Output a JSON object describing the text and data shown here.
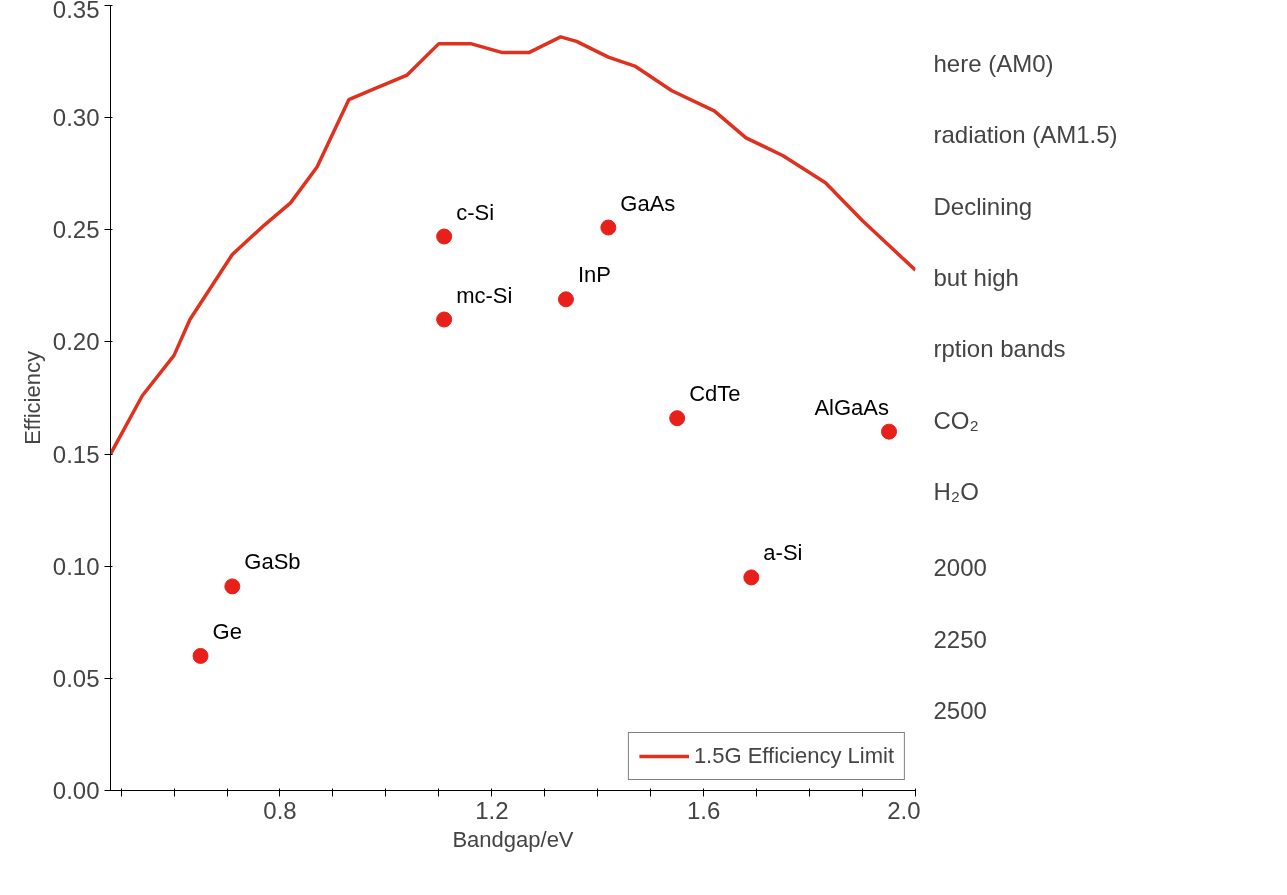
{
  "chart_data": [
    {
      "type": "scatter",
      "xlabel": "Bandgap/eV",
      "ylabel": "Efficiency",
      "xlim": [
        0.48,
        2.0
      ],
      "ylim": [
        0,
        0.35
      ],
      "xticks": [
        {
          "value": 0.5,
          "label": null
        },
        {
          "value": 0.6,
          "label": null
        },
        {
          "value": 0.7,
          "label": null
        },
        {
          "value": 0.8,
          "label": "0.8"
        },
        {
          "value": 0.9,
          "label": null
        },
        {
          "value": 1.0,
          "label": null
        },
        {
          "value": 1.1,
          "label": null
        },
        {
          "value": 1.2,
          "label": "1.2"
        },
        {
          "value": 1.3,
          "label": null
        },
        {
          "value": 1.4,
          "label": null
        },
        {
          "value": 1.5,
          "label": null
        },
        {
          "value": 1.6,
          "label": "1.6"
        },
        {
          "value": 1.7,
          "label": null
        },
        {
          "value": 1.8,
          "label": null
        },
        {
          "value": 1.9,
          "label": null
        },
        {
          "value": 2.0,
          "label": "2.0"
        }
      ],
      "yticks": [
        {
          "value": 0,
          "label": "0.00"
        },
        {
          "value": 0.05,
          "label": "0.05"
        },
        {
          "value": 0.1,
          "label": "0.10"
        },
        {
          "value": 0.15,
          "label": "0.15"
        },
        {
          "value": 0.2,
          "label": "0.20"
        },
        {
          "value": 0.25,
          "label": "0.25"
        },
        {
          "value": 0.3,
          "label": "0.30"
        },
        {
          "value": 0.35,
          "label": "0.35"
        }
      ],
      "grid": false,
      "legend": "bottom right",
      "series": [
        {
          "type": "line",
          "name": "1.5G Efficiency Limit",
          "color": "#e0301e",
          "marker": "none",
          "x": [
            0.48,
            0.54,
            0.6,
            0.63,
            0.71,
            0.77,
            0.82,
            0.87,
            0.93,
            0.98,
            1.04,
            1.1,
            1.16,
            1.22,
            1.27,
            1.33,
            1.36,
            1.42,
            1.47,
            1.54,
            1.62,
            1.68,
            1.75,
            1.83,
            1.9,
            2.0
          ],
          "values": [
            0.15,
            0.176,
            0.194,
            0.21,
            0.239,
            0.252,
            0.262,
            0.278,
            0.308,
            0.313,
            0.319,
            0.333,
            0.333,
            0.329,
            0.329,
            0.336,
            0.334,
            0.327,
            0.323,
            0.312,
            0.303,
            0.291,
            0.283,
            0.271,
            0.254,
            0.232
          ]
        },
        {
          "type": "scatter",
          "color": "#e8201a",
          "marker": "circle",
          "x": [
            0.65,
            0.71,
            1.11,
            1.11,
            1.42,
            1.34,
            1.55,
            1.69,
            1.95
          ],
          "values": [
            0.06,
            0.091,
            0.247,
            0.21,
            0.251,
            0.219,
            0.166,
            0.095,
            0.16
          ]
        }
      ],
      "annotations": [
        {
          "text": "Ge",
          "x": 0.65,
          "y": 0.06
        },
        {
          "text": "GaSb",
          "x": 0.71,
          "y": 0.091
        },
        {
          "text": "c-Si",
          "x": 1.11,
          "y": 0.247
        },
        {
          "text": "mc-Si",
          "x": 1.11,
          "y": 0.21
        },
        {
          "text": "GaAs",
          "x": 1.42,
          "y": 0.251
        },
        {
          "text": "InP",
          "x": 1.34,
          "y": 0.219
        },
        {
          "text": "CdTe",
          "x": 1.55,
          "y": 0.166
        },
        {
          "text": "a-Si",
          "x": 1.69,
          "y": 0.095
        },
        {
          "text": "AlGaAs",
          "x": 1.95,
          "y": 0.16
        }
      ]
    },
    {
      "type": "other",
      "annotations": [
        "here (AM0)",
        "radiation (AM1.5)",
        "Declining",
        "but high",
        "rption bands",
        "CO₂",
        "H₂O",
        "2000",
        "2250",
        "2500"
      ]
    }
  ]
}
